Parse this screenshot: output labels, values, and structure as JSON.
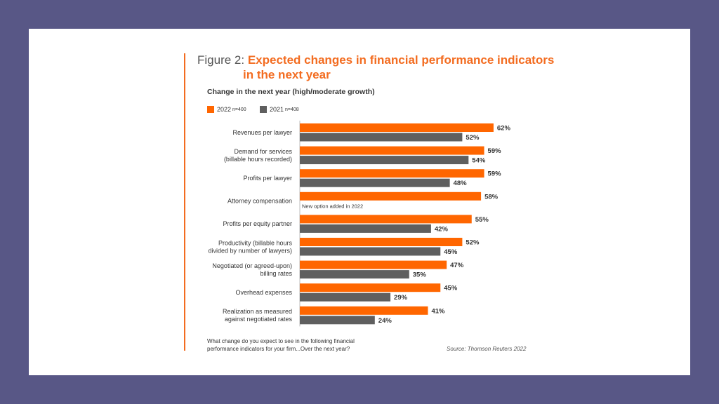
{
  "figure": {
    "prefix": "Figure 2:",
    "title_line1": "Expected changes in financial performance indicators",
    "title_line2": "in the next year",
    "subtitle": "Change in the next year (high/moderate growth)",
    "question": "What change do you expect to see in the following financial performance indicators for your firm...Over the next year?",
    "source": "Source: Thomson Reuters 2022",
    "note": "New option added in 2022"
  },
  "colors": {
    "accent": "#f36c20",
    "series_2022": "#ff6600",
    "series_2021": "#5f5f5f"
  },
  "chart_data": {
    "type": "bar",
    "orientation": "horizontal",
    "value_suffix": "%",
    "categories": [
      [
        "Revenues per lawyer"
      ],
      [
        "Demand for services",
        "(billable hours recorded)"
      ],
      [
        "Profits per lawyer"
      ],
      [
        "Attorney compensation"
      ],
      [
        "Profits per equity partner"
      ],
      [
        "Productivity (billable hours",
        "divided by number of lawyers)"
      ],
      [
        "Negotiated (or agreed-upon)",
        "billing rates"
      ],
      [
        "Overhead expenses"
      ],
      [
        "Realization as measured",
        "against negotiated rates"
      ]
    ],
    "series": [
      {
        "name": "2022",
        "n": "n=400",
        "values": [
          62,
          59,
          59,
          58,
          55,
          52,
          47,
          45,
          41
        ]
      },
      {
        "name": "2021",
        "n": "n=408",
        "values": [
          52,
          54,
          48,
          null,
          42,
          45,
          35,
          29,
          24
        ]
      }
    ],
    "legend": "top-left",
    "grid": false
  }
}
